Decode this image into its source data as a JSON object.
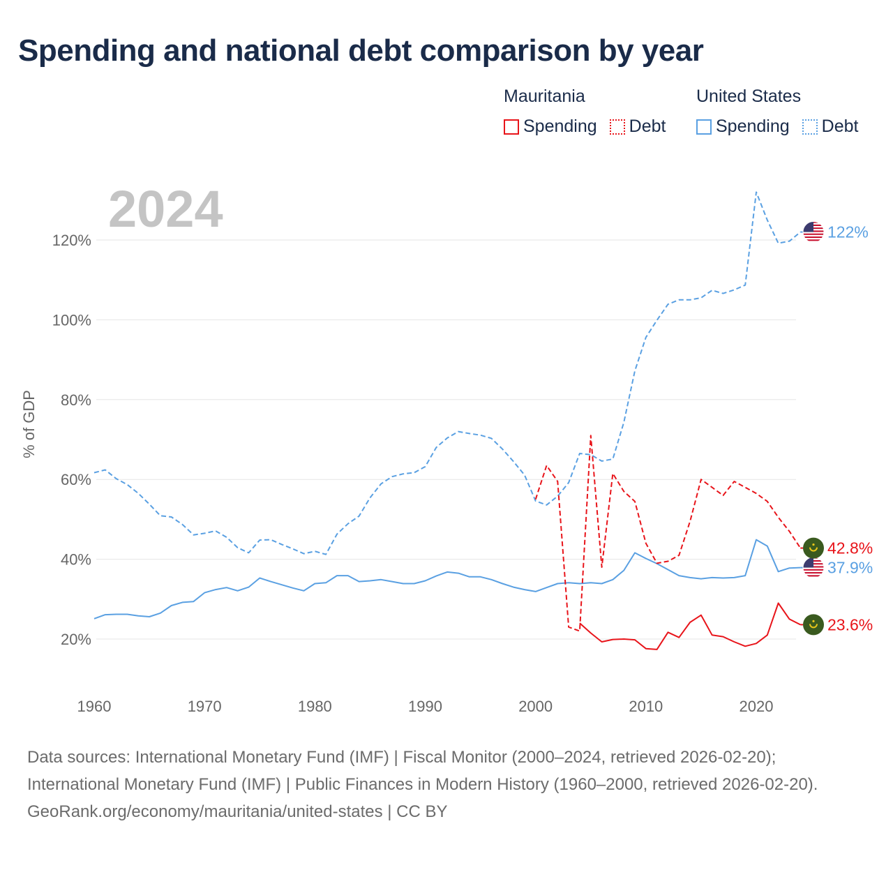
{
  "title": "Spending and national debt comparison by year",
  "year_label": "2024",
  "legend": [
    {
      "country": "Mauritania",
      "color": "#e8141a",
      "spending_label": "Spending",
      "debt_label": "Debt"
    },
    {
      "country": "United States",
      "color": "#5aa0e2",
      "spending_label": "Spending",
      "debt_label": "Debt"
    }
  ],
  "chart_data": {
    "type": "line",
    "title": "Spending and national debt comparison by year",
    "xlabel": "",
    "ylabel": "% of GDP",
    "xlim": [
      1960,
      2024
    ],
    "ylim": [
      10,
      135
    ],
    "x_ticks": [
      1960,
      1970,
      1980,
      1990,
      2000,
      2010,
      2020
    ],
    "y_ticks": [
      20,
      40,
      60,
      80,
      100,
      120
    ],
    "y_tick_labels": [
      "20%",
      "40%",
      "60%",
      "80%",
      "100%",
      "120%"
    ],
    "series": [
      {
        "name": "United States Debt",
        "country": "United States",
        "kind": "debt",
        "color": "#5aa0e2",
        "style": "dashed",
        "x_start": 1960,
        "values": [
          61.7,
          62.4,
          60.2,
          58.7,
          56.5,
          53.8,
          50.9,
          50.6,
          48.7,
          46.1,
          46.5,
          47.1,
          45.5,
          42.9,
          41.6,
          44.8,
          44.9,
          43.7,
          42.6,
          41.4,
          42.0,
          41.2,
          46.3,
          48.9,
          50.8,
          55.4,
          58.9,
          60.7,
          61.4,
          61.7,
          63.2,
          68.0,
          70.4,
          72.0,
          71.5,
          71.1,
          70.3,
          67.6,
          64.5,
          61.1,
          54.6,
          53.6,
          55.8,
          59.2,
          66.5,
          66.2,
          64.6,
          65.1,
          74.3,
          87.2,
          95.6,
          99.9,
          103.9,
          105.0,
          105.0,
          105.5,
          107.4,
          106.6,
          107.5,
          108.7,
          132.0,
          125.0,
          119.2,
          119.7,
          122.0
        ],
        "end_label": "122%"
      },
      {
        "name": "United States Spending",
        "country": "United States",
        "kind": "spending",
        "color": "#5aa0e2",
        "style": "solid",
        "x_start": 1960,
        "values": [
          25.1,
          26.1,
          26.2,
          26.2,
          25.8,
          25.6,
          26.5,
          28.4,
          29.2,
          29.4,
          31.6,
          32.4,
          32.9,
          32.1,
          33.0,
          35.3,
          34.4,
          33.6,
          32.8,
          32.1,
          33.9,
          34.1,
          35.9,
          35.9,
          34.4,
          34.6,
          34.9,
          34.4,
          33.9,
          33.9,
          34.6,
          35.8,
          36.8,
          36.5,
          35.6,
          35.6,
          34.9,
          33.9,
          33.0,
          32.4,
          31.9,
          32.9,
          33.9,
          34.1,
          33.9,
          34.1,
          33.9,
          34.9,
          37.2,
          41.6,
          40.2,
          38.9,
          37.4,
          35.9,
          35.4,
          35.1,
          35.4,
          35.3,
          35.4,
          35.9,
          44.9,
          43.3,
          36.9,
          37.8,
          37.9
        ],
        "end_label": "37.9%"
      },
      {
        "name": "Mauritania Debt",
        "country": "Mauritania",
        "kind": "debt",
        "color": "#e8141a",
        "style": "dashed",
        "x_start": 2000,
        "values": [
          55.0,
          63.5,
          59.5,
          23.0,
          22.0,
          71.0,
          38.0,
          61.5,
          57.0,
          54.5,
          44.0,
          39.0,
          39.5,
          41.0,
          49.5,
          60.0,
          58.0,
          56.0,
          59.5,
          58.0,
          56.5,
          54.5,
          50.5,
          47.0,
          42.8
        ],
        "end_label": "42.8%"
      },
      {
        "name": "Mauritania Spending",
        "country": "Mauritania",
        "kind": "spending",
        "color": "#e8141a",
        "style": "solid",
        "x_start": 2004,
        "values": [
          24.0,
          21.5,
          19.3,
          19.9,
          20.0,
          19.8,
          17.6,
          17.4,
          21.7,
          20.4,
          24.2,
          26.0,
          21.0,
          20.6,
          19.3,
          18.2,
          18.9,
          21.0,
          29.0,
          25.0,
          23.6
        ],
        "end_label": "23.6%"
      }
    ]
  },
  "footer": {
    "sources": "Data sources: International Monetary Fund (IMF) | Fiscal Monitor (2000–2024, retrieved 2026-02-20); International Monetary Fund (IMF) | Public Finances in Modern History (1960–2000, retrieved 2026-02-20).",
    "credit": "GeoRank.org/economy/mauritania/united-states | CC BY"
  }
}
